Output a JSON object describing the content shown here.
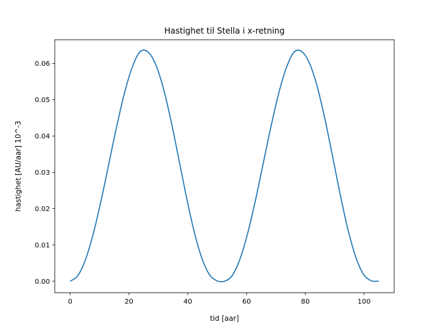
{
  "chart_data": {
    "type": "line",
    "title": "Hastighet til Stella i x-retning",
    "xlabel": "tid [aar]",
    "ylabel": "hastighet [AU/aar] 10^-3",
    "xlim": [
      -5.25,
      110.25
    ],
    "ylim": [
      -0.00317,
      0.06653
    ],
    "grid": false,
    "xticks": [
      0,
      20,
      40,
      60,
      80,
      100
    ],
    "xtick_labels": [
      "0",
      "20",
      "40",
      "60",
      "80",
      "100"
    ],
    "yticks": [
      0.0,
      0.01,
      0.02,
      0.03,
      0.04,
      0.05,
      0.06
    ],
    "ytick_labels": [
      "0.00",
      "0.01",
      "0.02",
      "0.03",
      "0.04",
      "0.05",
      "0.06"
    ],
    "series": [
      {
        "color": "#1f77b4",
        "x": [
          0,
          2.625,
          5.25,
          7.875,
          10.5,
          13.125,
          15.75,
          18.375,
          21,
          23.625,
          26.25,
          28.875,
          31.5,
          34.125,
          36.75,
          39.375,
          42,
          44.625,
          47.25,
          49.875,
          52.5,
          55.125,
          57.75,
          60.375,
          63,
          65.625,
          68.25,
          70.875,
          73.5,
          76.125,
          78.75,
          81.375,
          84,
          86.625,
          89.25,
          91.875,
          94.5,
          97.125,
          99.75,
          102.375,
          105
        ],
        "y": [
          0.0,
          0.00154,
          0.00604,
          0.01313,
          0.02215,
          0.03224,
          0.04237,
          0.05152,
          0.05869,
          0.06309,
          0.06332,
          0.06014,
          0.05379,
          0.04489,
          0.03451,
          0.02389,
          0.01429,
          0.00676,
          0.00196,
          0.00012,
          0.0,
          0.00154,
          0.00604,
          0.01313,
          0.02215,
          0.03224,
          0.04237,
          0.05152,
          0.05869,
          0.06309,
          0.06332,
          0.06014,
          0.05379,
          0.04489,
          0.03451,
          0.02389,
          0.01429,
          0.00676,
          0.00196,
          0.00012,
          0.0
        ]
      }
    ]
  }
}
